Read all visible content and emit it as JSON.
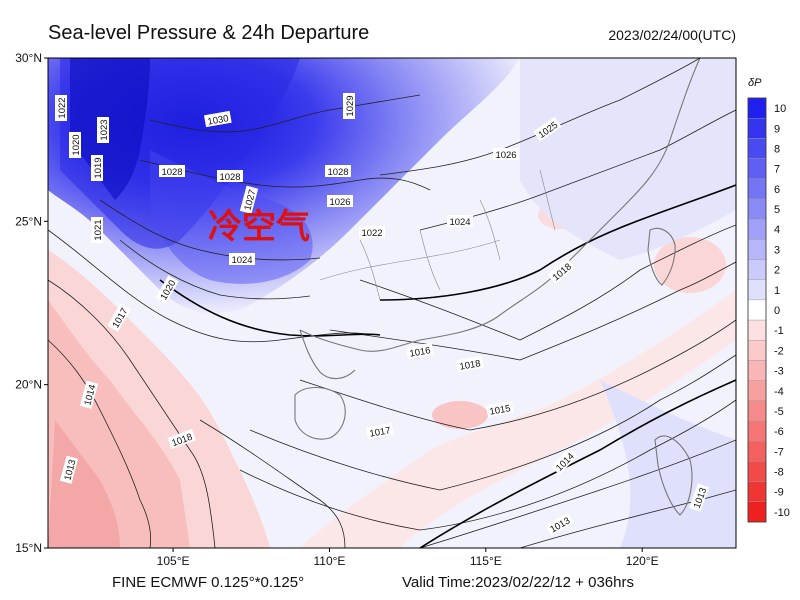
{
  "header": {
    "title": "Sea-level Pressure & 24h Departure",
    "datetime": "2023/02/24/00(UTC)"
  },
  "footer": {
    "model": "FINE ECMWF 0.125°*0.125°",
    "valid_time": "Valid Time:2023/02/22/12 + 036hrs"
  },
  "map": {
    "lat_labels": [
      {
        "text": "30°N",
        "lat": 30
      },
      {
        "text": "25°N",
        "lat": 25
      },
      {
        "text": "20°N",
        "lat": 20
      },
      {
        "text": "15°N",
        "lat": 15
      }
    ],
    "lon_labels": [
      {
        "text": "105°E",
        "lon": 105
      },
      {
        "text": "110°E",
        "lon": 110
      },
      {
        "text": "115°E",
        "lon": 115
      },
      {
        "text": "120°E",
        "lon": 120
      }
    ],
    "annotation": "冷空气",
    "isobar_labels": [
      "1022",
      "1021",
      "1020",
      "1019",
      "1017",
      "1023",
      "1028",
      "1030",
      "1029",
      "1027",
      "1024",
      "1026",
      "1025",
      "1018",
      "1016",
      "1015",
      "1014",
      "1013"
    ]
  },
  "colorbar": {
    "title": "δP",
    "levels": [
      10,
      9,
      8,
      7,
      6,
      5,
      4,
      3,
      2,
      1,
      0,
      -1,
      -2,
      -3,
      -4,
      -5,
      -6,
      -7,
      -8,
      -9,
      -10
    ],
    "colors": [
      "#2020ee",
      "#3535f0",
      "#4a4af2",
      "#5f5ff4",
      "#7474f5",
      "#8a8af6",
      "#a0a0f8",
      "#b6b6fa",
      "#cbcbfb",
      "#e0e0fd",
      "#ffffff",
      "#fde0e0",
      "#fbcbcb",
      "#fab6b6",
      "#f8a0a0",
      "#f68a8a",
      "#f57474",
      "#f45f5f",
      "#f24a4a",
      "#f03535",
      "#ee2020"
    ]
  }
}
